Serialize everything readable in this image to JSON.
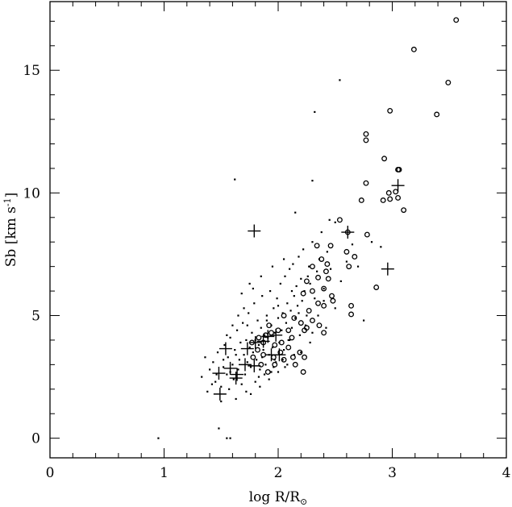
{
  "chart_data": {
    "type": "scatter",
    "title": "",
    "xlabel": "log R/R",
    "xlabel_subscript": "⊙",
    "ylabel": "Sb [km s",
    "ylabel_superscript": "-1",
    "ylabel_close": "]",
    "xlim": [
      0,
      4
    ],
    "ylim": [
      -0.8,
      17.8
    ],
    "x_ticks": [
      0,
      1,
      2,
      3,
      4
    ],
    "y_ticks": [
      0,
      5,
      10,
      15
    ],
    "x_tick_labels": [
      "0",
      "1",
      "2",
      "3",
      "4"
    ],
    "y_tick_labels": [
      "0",
      "5",
      "10",
      "15"
    ],
    "grid": false,
    "series": [
      {
        "marker": "dot",
        "points": [
          [
            0.95,
            0.0
          ],
          [
            1.48,
            0.4
          ],
          [
            1.55,
            0.0
          ],
          [
            1.58,
            0.0
          ],
          [
            1.33,
            2.5
          ],
          [
            1.38,
            1.9
          ],
          [
            1.4,
            2.8
          ],
          [
            1.43,
            3.1
          ],
          [
            1.45,
            2.3
          ],
          [
            1.47,
            3.5
          ],
          [
            1.5,
            2.1
          ],
          [
            1.52,
            2.9
          ],
          [
            1.53,
            3.8
          ],
          [
            1.55,
            2.6
          ],
          [
            1.56,
            3.3
          ],
          [
            1.57,
            2.0
          ],
          [
            1.58,
            4.1
          ],
          [
            1.6,
            3.0
          ],
          [
            1.61,
            2.4
          ],
          [
            1.62,
            3.6
          ],
          [
            1.63,
            1.6
          ],
          [
            1.64,
            4.4
          ],
          [
            1.65,
            2.8
          ],
          [
            1.66,
            3.2
          ],
          [
            1.67,
            3.9
          ],
          [
            1.68,
            2.2
          ],
          [
            1.69,
            4.7
          ],
          [
            1.7,
            3.4
          ],
          [
            1.71,
            2.6
          ],
          [
            1.72,
            4.0
          ],
          [
            1.73,
            3.1
          ],
          [
            1.74,
            5.1
          ],
          [
            1.75,
            3.7
          ],
          [
            1.76,
            2.9
          ],
          [
            1.77,
            4.3
          ],
          [
            1.78,
            3.5
          ],
          [
            1.79,
            5.5
          ],
          [
            1.8,
            4.0
          ],
          [
            1.81,
            3.2
          ],
          [
            1.82,
            4.8
          ],
          [
            1.83,
            3.8
          ],
          [
            1.84,
            2.8
          ],
          [
            1.85,
            4.5
          ],
          [
            1.86,
            5.8
          ],
          [
            1.87,
            3.6
          ],
          [
            1.88,
            4.2
          ],
          [
            1.89,
            3.0
          ],
          [
            1.9,
            5.0
          ],
          [
            1.91,
            4.1
          ],
          [
            1.92,
            3.4
          ],
          [
            1.93,
            6.0
          ],
          [
            1.94,
            4.6
          ],
          [
            1.95,
            3.7
          ],
          [
            1.96,
            5.3
          ],
          [
            1.97,
            4.3
          ],
          [
            1.98,
            3.1
          ],
          [
            1.99,
            5.7
          ],
          [
            2.0,
            4.9
          ],
          [
            2.01,
            3.9
          ],
          [
            2.02,
            6.3
          ],
          [
            2.03,
            4.4
          ],
          [
            2.04,
            5.1
          ],
          [
            2.05,
            3.6
          ],
          [
            2.06,
            6.6
          ],
          [
            2.07,
            4.7
          ],
          [
            2.08,
            5.5
          ],
          [
            2.09,
            4.0
          ],
          [
            2.1,
            6.9
          ],
          [
            2.11,
            5.2
          ],
          [
            2.12,
            4.5
          ],
          [
            2.13,
            7.1
          ],
          [
            2.14,
            5.8
          ],
          [
            2.15,
            4.9
          ],
          [
            2.16,
            6.2
          ],
          [
            2.17,
            5.4
          ],
          [
            2.18,
            7.4
          ],
          [
            2.19,
            4.2
          ],
          [
            2.2,
            6.5
          ],
          [
            2.21,
            5.6
          ],
          [
            2.22,
            7.7
          ],
          [
            2.23,
            6.0
          ],
          [
            2.25,
            5.0
          ],
          [
            2.27,
            7.0
          ],
          [
            2.28,
            6.3
          ],
          [
            2.3,
            8.0
          ],
          [
            2.32,
            5.7
          ],
          [
            2.34,
            6.8
          ],
          [
            2.36,
            7.3
          ],
          [
            2.38,
            8.4
          ],
          [
            2.4,
            6.1
          ],
          [
            2.43,
            7.6
          ],
          [
            2.46,
            6.9
          ],
          [
            2.5,
            8.8
          ],
          [
            1.55,
            4.2
          ],
          [
            1.6,
            4.6
          ],
          [
            1.65,
            5.0
          ],
          [
            1.7,
            5.3
          ],
          [
            1.72,
            1.9
          ],
          [
            1.76,
            1.8
          ],
          [
            1.8,
            2.3
          ],
          [
            1.84,
            2.1
          ],
          [
            1.88,
            2.6
          ],
          [
            1.92,
            2.4
          ],
          [
            1.96,
            2.9
          ],
          [
            2.0,
            2.7
          ],
          [
            2.04,
            3.2
          ],
          [
            2.08,
            3.0
          ],
          [
            1.62,
            10.55
          ],
          [
            2.32,
            13.3
          ],
          [
            2.54,
            14.6
          ],
          [
            2.3,
            10.5
          ],
          [
            2.15,
            9.2
          ],
          [
            2.45,
            8.9
          ],
          [
            2.82,
            8.0
          ],
          [
            2.9,
            7.8
          ],
          [
            2.75,
            4.8
          ],
          [
            1.75,
            6.3
          ],
          [
            1.85,
            6.6
          ],
          [
            1.95,
            7.0
          ],
          [
            2.05,
            7.3
          ],
          [
            1.68,
            5.9
          ],
          [
            1.78,
            6.1
          ],
          [
            1.42,
            2.2
          ],
          [
            1.36,
            3.3
          ],
          [
            1.5,
            1.5
          ],
          [
            2.1,
            4.0
          ],
          [
            2.2,
            3.5
          ],
          [
            2.3,
            4.3
          ],
          [
            2.35,
            5.0
          ],
          [
            2.4,
            5.6
          ],
          [
            1.83,
            2.5
          ],
          [
            1.9,
            4.8
          ],
          [
            2.0,
            5.4
          ],
          [
            2.12,
            6.0
          ],
          [
            2.26,
            6.6
          ],
          [
            2.18,
            5.1
          ],
          [
            2.24,
            4.6
          ],
          [
            1.97,
            3.2
          ],
          [
            1.73,
            4.6
          ],
          [
            1.63,
            3.4
          ],
          [
            1.58,
            2.7
          ],
          [
            1.52,
            3.2
          ],
          [
            1.46,
            2.6
          ],
          [
            1.86,
            3.3
          ],
          [
            1.94,
            2.7
          ],
          [
            2.06,
            2.9
          ],
          [
            2.14,
            3.4
          ],
          [
            2.28,
            3.9
          ],
          [
            2.42,
            4.5
          ],
          [
            2.5,
            5.3
          ],
          [
            2.55,
            6.4
          ],
          [
            2.6,
            7.2
          ],
          [
            2.65,
            7.9
          ],
          [
            2.7,
            7.0
          ]
        ]
      },
      {
        "marker": "circle",
        "points": [
          [
            3.56,
            17.05
          ],
          [
            3.19,
            15.85
          ],
          [
            3.49,
            14.5
          ],
          [
            2.98,
            13.35
          ],
          [
            3.39,
            13.2
          ],
          [
            2.77,
            12.4
          ],
          [
            2.77,
            12.15
          ],
          [
            2.93,
            11.4
          ],
          [
            3.05,
            10.95
          ],
          [
            3.06,
            10.95
          ],
          [
            2.77,
            10.4
          ],
          [
            2.97,
            10.0
          ],
          [
            3.03,
            10.05
          ],
          [
            3.05,
            9.8
          ],
          [
            2.73,
            9.7
          ],
          [
            2.92,
            9.7
          ],
          [
            2.98,
            9.75
          ],
          [
            3.1,
            9.3
          ],
          [
            2.54,
            8.9
          ],
          [
            2.78,
            8.3
          ],
          [
            2.61,
            8.4
          ],
          [
            2.46,
            7.85
          ],
          [
            2.6,
            7.6
          ],
          [
            2.67,
            7.4
          ],
          [
            2.34,
            7.85
          ],
          [
            2.38,
            7.3
          ],
          [
            2.43,
            7.1
          ],
          [
            2.3,
            7.0
          ],
          [
            2.42,
            6.8
          ],
          [
            2.62,
            7.0
          ],
          [
            2.35,
            6.55
          ],
          [
            2.44,
            6.5
          ],
          [
            2.25,
            6.4
          ],
          [
            2.4,
            6.1
          ],
          [
            2.3,
            6.0
          ],
          [
            2.22,
            5.9
          ],
          [
            2.35,
            5.5
          ],
          [
            2.47,
            5.8
          ],
          [
            2.48,
            5.6
          ],
          [
            2.27,
            5.2
          ],
          [
            2.4,
            5.4
          ],
          [
            2.64,
            5.4
          ],
          [
            2.64,
            5.05
          ],
          [
            2.3,
            4.8
          ],
          [
            2.36,
            4.6
          ],
          [
            2.4,
            4.3
          ],
          [
            2.25,
            4.5
          ],
          [
            2.2,
            4.7
          ],
          [
            2.14,
            4.9
          ],
          [
            2.05,
            5.0
          ],
          [
            2.09,
            4.4
          ],
          [
            2.23,
            4.4
          ],
          [
            2.12,
            4.1
          ],
          [
            2.0,
            4.4
          ],
          [
            1.94,
            4.3
          ],
          [
            1.89,
            4.2
          ],
          [
            1.87,
            3.9
          ],
          [
            1.97,
            3.8
          ],
          [
            2.03,
            3.9
          ],
          [
            2.09,
            3.7
          ],
          [
            2.19,
            3.5
          ],
          [
            2.23,
            3.3
          ],
          [
            2.13,
            3.3
          ],
          [
            2.05,
            3.2
          ],
          [
            1.96,
            3.3
          ],
          [
            1.87,
            3.4
          ],
          [
            1.82,
            3.6
          ],
          [
            1.78,
            3.3
          ],
          [
            1.85,
            3.0
          ],
          [
            1.91,
            2.7
          ],
          [
            1.97,
            3.0
          ],
          [
            2.02,
            3.5
          ],
          [
            2.15,
            3.0
          ],
          [
            2.22,
            2.7
          ],
          [
            2.86,
            6.15
          ],
          [
            1.77,
            3.9
          ],
          [
            1.83,
            4.1
          ],
          [
            1.92,
            4.6
          ]
        ]
      },
      {
        "marker": "plus",
        "points": [
          [
            1.79,
            8.45
          ],
          [
            3.05,
            10.3
          ],
          [
            2.61,
            8.4
          ],
          [
            2.96,
            6.9
          ],
          [
            1.54,
            3.65
          ],
          [
            1.48,
            2.65
          ],
          [
            1.58,
            2.85
          ],
          [
            1.64,
            2.6
          ],
          [
            1.71,
            3.0
          ],
          [
            1.79,
            2.95
          ],
          [
            1.73,
            3.65
          ],
          [
            1.8,
            3.9
          ],
          [
            1.87,
            3.95
          ],
          [
            1.91,
            4.15
          ],
          [
            2.01,
            3.4
          ],
          [
            1.94,
            3.4
          ],
          [
            1.49,
            1.8
          ],
          [
            1.63,
            2.45
          ],
          [
            1.98,
            4.2
          ]
        ]
      }
    ]
  }
}
